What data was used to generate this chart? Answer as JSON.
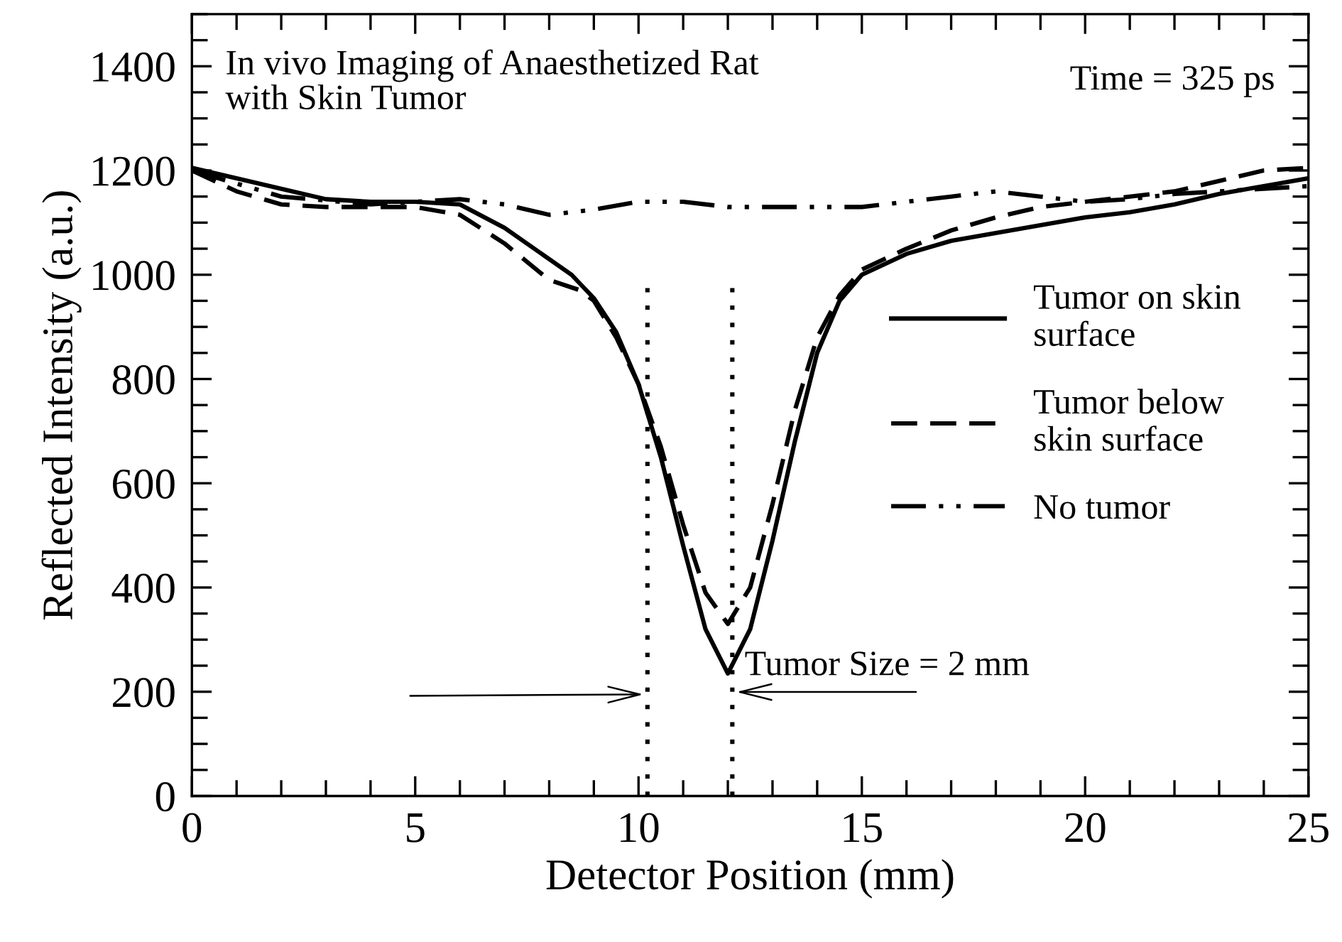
{
  "chart_data": {
    "type": "line",
    "xlabel": "Detector Position (mm)",
    "ylabel": "Reflected Intensity (a.u.)",
    "xlim": [
      0,
      25
    ],
    "xticks": [
      0,
      5,
      10,
      15,
      20,
      25
    ],
    "ylim": [
      0,
      1500
    ],
    "yticks": [
      0,
      200,
      400,
      600,
      800,
      1000,
      1200,
      1400
    ],
    "grid": false,
    "legend": "right",
    "marker": "none",
    "series": [
      {
        "name": "Tumor on skin\nsurface",
        "color": "#000000",
        "line_style": "solid",
        "x": [
          0,
          1,
          2,
          3,
          4,
          5,
          6,
          7,
          8,
          8.5,
          9,
          9.5,
          10,
          10.5,
          11,
          11.5,
          12,
          12.5,
          13,
          13.5,
          14,
          14.5,
          15,
          16,
          17,
          18,
          19,
          20,
          21,
          22,
          23,
          24,
          25
        ],
        "values": [
          1205,
          1185,
          1165,
          1145,
          1140,
          1140,
          1135,
          1090,
          1030,
          1000,
          955,
          890,
          790,
          650,
          480,
          320,
          235,
          320,
          490,
          680,
          850,
          950,
          1000,
          1040,
          1065,
          1080,
          1095,
          1110,
          1120,
          1135,
          1155,
          1170,
          1185
        ]
      },
      {
        "name": "Tumor below\nskin surface",
        "color": "#000000",
        "line_style": "dashed",
        "x": [
          0,
          1,
          2,
          3,
          4,
          5,
          6,
          7,
          8,
          8.7,
          9,
          9.5,
          10,
          10.5,
          11,
          11.5,
          12,
          12.5,
          13,
          13.5,
          14,
          14.5,
          15,
          16,
          17,
          18,
          19,
          20,
          21,
          22,
          23,
          24,
          25
        ],
        "values": [
          1200,
          1160,
          1135,
          1130,
          1130,
          1130,
          1115,
          1060,
          990,
          970,
          950,
          880,
          790,
          670,
          520,
          390,
          330,
          400,
          560,
          740,
          880,
          960,
          1010,
          1050,
          1085,
          1110,
          1130,
          1140,
          1150,
          1160,
          1180,
          1200,
          1205
        ]
      },
      {
        "name": "No tumor",
        "color": "#000000",
        "line_style": "dashdotdot",
        "x": [
          0,
          2,
          4,
          6,
          7,
          8,
          9,
          10,
          11,
          12,
          13,
          14,
          15,
          16,
          17,
          18,
          19,
          20,
          21,
          22,
          23,
          24,
          25
        ],
        "values": [
          1200,
          1150,
          1135,
          1145,
          1135,
          1115,
          1125,
          1140,
          1140,
          1130,
          1130,
          1130,
          1130,
          1140,
          1150,
          1160,
          1150,
          1140,
          1145,
          1155,
          1160,
          1165,
          1170
        ]
      }
    ],
    "ref_lines": [
      {
        "axis": "x",
        "value": 10.2,
        "line_style": "dotted",
        "color": "#000000"
      },
      {
        "axis": "x",
        "value": 12.1,
        "line_style": "dotted",
        "color": "#000000"
      }
    ],
    "annotations": [
      "In vivo Imaging of Anaesthetized Rat\nwith Skin Tumor",
      "Time = 325 ps",
      "Tumor Size = 2 mm"
    ]
  }
}
